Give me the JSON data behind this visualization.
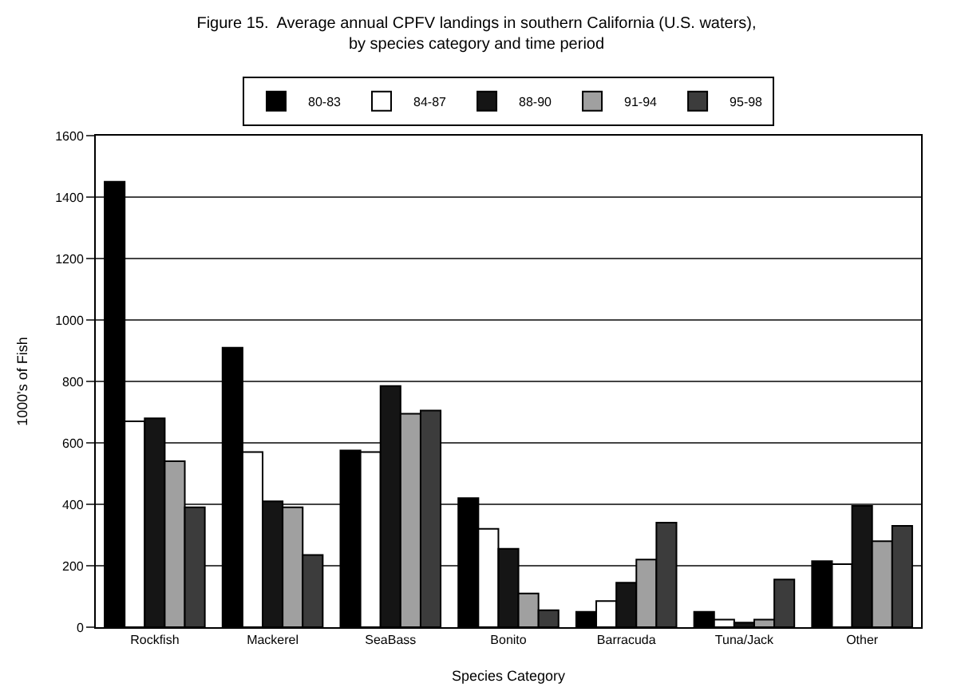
{
  "chart_data": {
    "type": "bar",
    "title": "Figure 15.  Average annual CPFV landings in southern California (U.S. waters),\nby species category and time period",
    "xlabel": "Species Category",
    "ylabel": "1000's of Fish",
    "categories": [
      "Rockfish",
      "Mackerel",
      "SeaBass",
      "Bonito",
      "Barracuda",
      "Tuna/Jack",
      "Other"
    ],
    "series": [
      {
        "name": "80-83",
        "color": "#000000",
        "values": [
          1450,
          910,
          575,
          420,
          50,
          50,
          215
        ]
      },
      {
        "name": "84-87",
        "color": "#ffffff",
        "values": [
          670,
          570,
          570,
          320,
          85,
          25,
          205
        ]
      },
      {
        "name": "88-90",
        "color": "#151515",
        "values": [
          680,
          410,
          785,
          255,
          145,
          15,
          395
        ]
      },
      {
        "name": "91-94",
        "color": "#a0a0a0",
        "values": [
          540,
          390,
          695,
          110,
          220,
          25,
          280
        ]
      },
      {
        "name": "95-98",
        "color": "#3c3c3c",
        "values": [
          390,
          235,
          705,
          55,
          340,
          155,
          330
        ]
      }
    ],
    "ylim": [
      0,
      1600
    ],
    "yticks": [
      0,
      200,
      400,
      600,
      800,
      1000,
      1200,
      1400,
      1600
    ],
    "grid": "y",
    "legend": "top"
  }
}
